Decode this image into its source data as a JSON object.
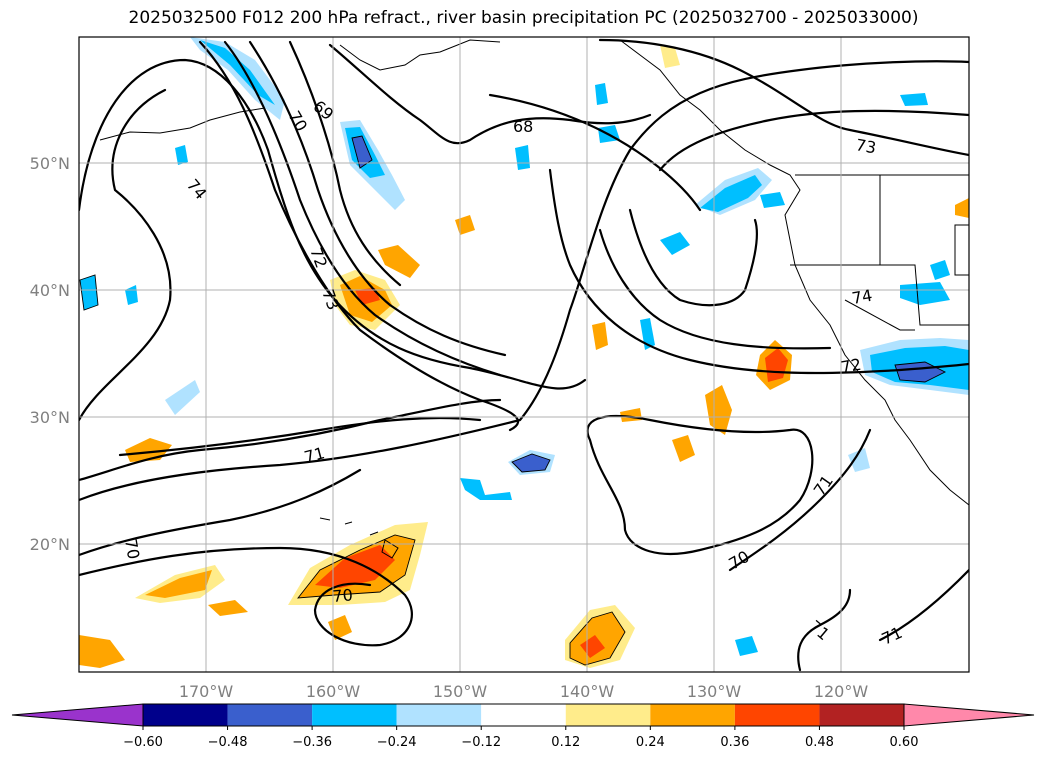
{
  "title": "2025032500 F012 200 hPa refract., river basin precipitation PC (2025032700 - 2025033000)",
  "map": {
    "lon_labels": [
      "170°W",
      "160°W",
      "150°W",
      "140°W",
      "130°W",
      "120°W"
    ],
    "lat_labels": [
      "50°N",
      "40°N",
      "30°N",
      "20°N"
    ],
    "contour_labels": [
      "70",
      "69",
      "68",
      "73",
      "74",
      "72",
      "73",
      "74",
      "72",
      "71",
      "70",
      "70",
      "71",
      "70",
      "71",
      "71"
    ]
  },
  "colorbar": {
    "ticks": [
      "−0.60",
      "−0.48",
      "−0.36",
      "−0.24",
      "−0.12",
      "0.12",
      "0.24",
      "0.36",
      "0.48",
      "0.60"
    ],
    "colors": [
      "#9a33cc",
      "#00008b",
      "#3a5fcd",
      "#00bfff",
      "#b0e2ff",
      "#ffffff",
      "#ffec8b",
      "#ffa500",
      "#ff4500",
      "#b22222",
      "#ff88aa"
    ]
  }
}
